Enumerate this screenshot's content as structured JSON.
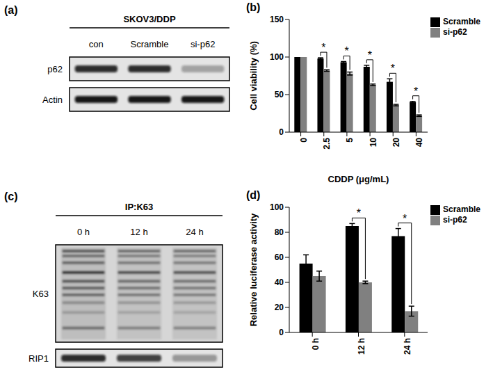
{
  "chart_data": [
    {
      "type": "bar",
      "title": "(b)",
      "x_label": "CDDP (μg/mL)",
      "y_label": "Cell viability (%)",
      "categories": [
        "0",
        "2.5",
        "5",
        "10",
        "20",
        "40"
      ],
      "series": [
        {
          "name": "Scramble",
          "color": "#000000",
          "values": [
            100,
            98,
            93,
            87,
            67,
            40
          ],
          "errors": [
            0,
            1,
            1,
            2,
            4,
            1
          ]
        },
        {
          "name": "si-p62",
          "color": "#808080",
          "values": [
            100,
            82,
            78,
            63,
            36,
            22
          ],
          "errors": [
            0,
            1,
            2,
            1,
            1,
            1
          ]
        }
      ],
      "annotations": [
        null,
        "*",
        "*",
        "*",
        "*",
        "*"
      ],
      "ylim": [
        0,
        150
      ],
      "yticks": [
        0,
        50,
        100,
        150
      ],
      "legend": "upper right",
      "grid": false
    },
    {
      "type": "bar",
      "title": "(d)",
      "y_label": "Relative luciferase activity",
      "categories": [
        "0 h",
        "12 h",
        "24 h"
      ],
      "series": [
        {
          "name": "Scramble",
          "color": "#000000",
          "values": [
            55,
            85,
            77
          ],
          "errors": [
            7,
            2,
            6
          ]
        },
        {
          "name": "si-p62",
          "color": "#808080",
          "values": [
            45,
            40,
            17
          ],
          "errors": [
            4,
            1,
            4
          ]
        }
      ],
      "annotations": [
        null,
        "*",
        "*"
      ],
      "ylim": [
        0,
        100
      ],
      "yticks": [
        0,
        20,
        40,
        60,
        80,
        100
      ],
      "legend": "upper right",
      "grid": false
    }
  ],
  "blots": [
    {
      "panel": "(a)",
      "header": "SKOV3/DDP",
      "lanes": [
        "con",
        "Scramble",
        "si-p62"
      ],
      "rows": [
        {
          "label": "p62",
          "kind": "band",
          "intensity": [
            0.85,
            0.85,
            0.3
          ]
        },
        {
          "label": "Actin",
          "kind": "band",
          "intensity": [
            0.95,
            0.95,
            0.95
          ]
        }
      ]
    },
    {
      "panel": "(c)",
      "header": "IP:K63",
      "lanes": [
        "0 h",
        "12 h",
        "24 h"
      ],
      "rows": [
        {
          "label": "K63",
          "kind": "smear",
          "intensity": [
            0.9,
            0.75,
            0.7
          ]
        },
        {
          "label": "RIP1",
          "kind": "band",
          "intensity": [
            0.85,
            0.75,
            0.35
          ]
        }
      ]
    }
  ]
}
